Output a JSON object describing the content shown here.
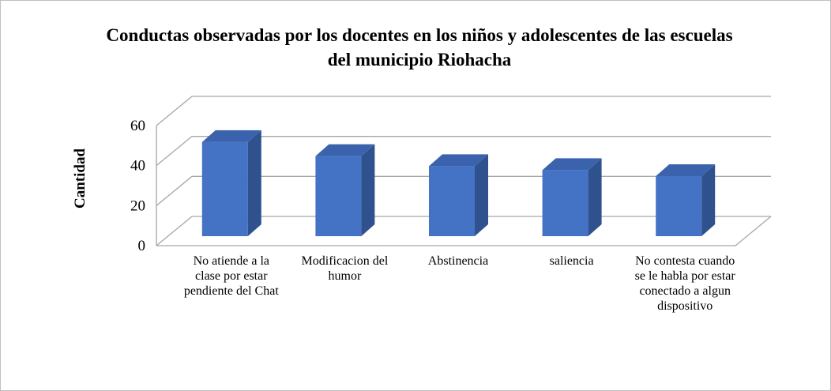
{
  "chart_data": {
    "type": "bar3d",
    "title": "Conductas observadas por los docentes en los niños y adolescentes de las escuelas del municipio Riohacha",
    "y_label": "Cantidad",
    "categories": [
      "No atiende a la clase por estar pendiente del Chat",
      "Modificacion del humor",
      "Abstinencia",
      "saliencia",
      "No contesta cuando se le habla por estar conectado a algun dispositivo"
    ],
    "values": [
      47,
      40,
      35,
      33,
      30
    ],
    "color": "#4472c4",
    "ylim": [
      0,
      60
    ],
    "yticks": [
      0,
      20,
      40,
      60
    ],
    "grid": true
  }
}
